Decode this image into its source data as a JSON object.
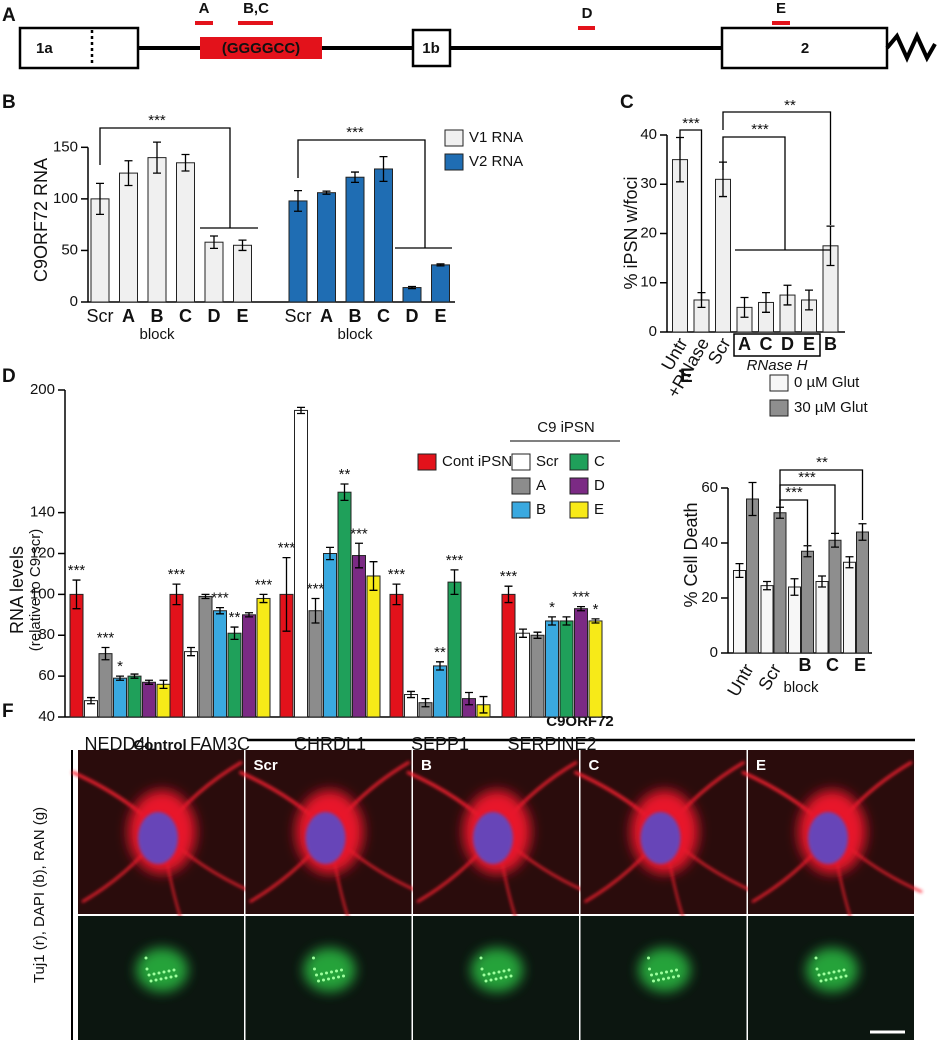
{
  "panel_labels": [
    "A",
    "B",
    "C",
    "D",
    "E",
    "F"
  ],
  "diagram": {
    "exons": [
      "1a",
      "1b",
      "2"
    ],
    "repeat": "(GGGGCC)",
    "blocks": [
      "A",
      "B,C",
      "D",
      "E"
    ]
  },
  "chart_data": [
    {
      "type": "bar",
      "ylabel": "C9ORF72 RNA",
      "xlabel": "block",
      "categories": [
        "Scr",
        "A",
        "B",
        "C",
        "D",
        "E"
      ],
      "series": [
        {
          "name": "V1 RNA",
          "color": "#f0f0f0",
          "values": [
            100,
            125,
            140,
            135,
            58,
            55
          ],
          "errors": [
            15,
            12,
            15,
            8,
            6,
            5
          ]
        },
        {
          "name": "V2 RNA",
          "color": "#1f6db3",
          "values": [
            98,
            106,
            121,
            129,
            14,
            36
          ],
          "errors": [
            10,
            1.5,
            5,
            12,
            1,
            1
          ]
        }
      ],
      "ylim": [
        0,
        160
      ],
      "yticks": [
        0,
        50,
        100,
        150
      ],
      "annotations": [
        "***",
        "***"
      ]
    },
    {
      "type": "bar",
      "ylabel": "% iPSN w/foci",
      "xlabel": "RNase H",
      "categories": [
        "Untr",
        "+RNase",
        "Scr",
        "A",
        "C",
        "D",
        "E",
        "B"
      ],
      "values": [
        35,
        6.5,
        31,
        5,
        6,
        7.5,
        6.5,
        17.5
      ],
      "errors": [
        4.5,
        1.5,
        3.5,
        2,
        2,
        2,
        2,
        4
      ],
      "color": "#efefef",
      "ylim": [
        0,
        40
      ],
      "yticks": [
        0,
        10,
        20,
        30,
        40
      ],
      "annotations": [
        "***",
        "***",
        "**"
      ]
    },
    {
      "type": "bar",
      "ylabel": "RNA levels",
      "ylabel_note": "(relative to C9 scr)",
      "legend_title": "C9 iPSN",
      "categories": [
        "NEDD4L",
        "FAM3C",
        "CHRDL1",
        "SEPP1",
        "SERPINE2"
      ],
      "series": [
        {
          "name": "Cont iPSN",
          "color": "#e3121b",
          "values": [
            100,
            100,
            100,
            100,
            100
          ],
          "errors": [
            7,
            5,
            18,
            5,
            4
          ]
        },
        {
          "name": "Scr",
          "color": "#ffffff",
          "values": [
            48,
            72,
            190,
            51,
            81
          ],
          "errors": [
            1.5,
            2,
            1.5,
            1.5,
            2
          ]
        },
        {
          "name": "A",
          "color": "#8c8c8c",
          "values": [
            71,
            99,
            92,
            47,
            80
          ],
          "errors": [
            3,
            1,
            6,
            2,
            1.5
          ]
        },
        {
          "name": "B",
          "color": "#3aa9e0",
          "values": [
            59,
            92,
            120,
            65,
            87
          ],
          "errors": [
            1,
            1.5,
            3,
            2,
            2
          ]
        },
        {
          "name": "C",
          "color": "#1fa05a",
          "values": [
            60,
            81,
            150,
            106,
            87
          ],
          "errors": [
            1,
            3,
            4,
            6,
            2
          ]
        },
        {
          "name": "D",
          "color": "#7b2a84",
          "values": [
            57,
            90,
            119,
            49,
            93
          ],
          "errors": [
            1,
            1,
            6,
            3,
            1
          ]
        },
        {
          "name": "E",
          "color": "#f7ea18",
          "values": [
            56,
            98,
            109,
            46,
            87
          ],
          "errors": [
            2,
            2,
            7,
            4,
            1
          ]
        }
      ],
      "ylim": [
        40,
        200
      ],
      "yticks": [
        40,
        60,
        80,
        100,
        120,
        140,
        200
      ],
      "annotations": [
        "***",
        "***",
        "*",
        "***",
        "***",
        "**",
        "***",
        "***",
        "***",
        "**",
        "***",
        "***",
        "**",
        "***",
        "***",
        "*",
        "***",
        "*"
      ]
    },
    {
      "type": "bar",
      "ylabel": "% Cell Death",
      "xlabel": "block",
      "categories": [
        "Untr",
        "Scr",
        "B",
        "C",
        "E"
      ],
      "series": [
        {
          "name": "0 µM Glut",
          "color": "#f7f7f7",
          "values": [
            30,
            24.5,
            24,
            26,
            33
          ],
          "errors": [
            2.5,
            1.5,
            3,
            2,
            2
          ]
        },
        {
          "name": "30 µM Glut",
          "color": "#8e8e8e",
          "values": [
            56,
            51,
            37,
            41,
            44
          ],
          "errors": [
            6,
            2,
            2,
            2.5,
            3
          ]
        }
      ],
      "ylim": [
        0,
        70
      ],
      "yticks": [
        0,
        20,
        40,
        60
      ],
      "annotations": [
        "**",
        "***",
        "***"
      ]
    }
  ],
  "micrographs": {
    "groups": [
      "Control",
      "C9ORF72"
    ],
    "columns": [
      "Scr",
      "B",
      "C",
      "E"
    ],
    "ylabel": "Tuj1 (r), DAPI (b), RAN (g)"
  }
}
